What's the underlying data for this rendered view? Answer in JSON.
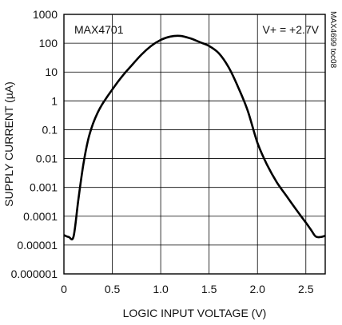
{
  "chart_data": {
    "type": "line",
    "title": "",
    "xlabel": "LOGIC INPUT VOLTAGE (V)",
    "ylabel": "SUPPLY CURRENT (µA)",
    "xlim": [
      0,
      2.7
    ],
    "ylim": [
      1e-06,
      1000
    ],
    "y_scale": "log",
    "grid": true,
    "x_ticks": [
      0,
      0.5,
      1.0,
      1.5,
      2.0,
      2.5
    ],
    "x_tick_labels": [
      "0",
      "0.5",
      "1.0",
      "1.5",
      "2.0",
      "2.5"
    ],
    "y_ticks": [
      1e-06,
      1e-05,
      0.0001,
      0.001,
      0.01,
      0.1,
      1,
      10,
      100,
      1000
    ],
    "y_tick_labels": [
      "0.000001",
      "0.00001",
      "0.0001",
      "0.001",
      "0.01",
      "0.1",
      "1",
      "10",
      "100",
      "1000"
    ],
    "annotations": {
      "part": "MAX4701",
      "condition": "V+ = +2.7V",
      "figure_id": "MAX4699 toc08"
    },
    "series": [
      {
        "color": "#000000",
        "points": [
          [
            0.0,
            2.2e-05
          ],
          [
            0.05,
            1.9e-05
          ],
          [
            0.1,
            2e-05
          ],
          [
            0.15,
            0.0004
          ],
          [
            0.2,
            0.006
          ],
          [
            0.25,
            0.045
          ],
          [
            0.3,
            0.16
          ],
          [
            0.35,
            0.4
          ],
          [
            0.4,
            0.8
          ],
          [
            0.5,
            2.5
          ],
          [
            0.6,
            7
          ],
          [
            0.7,
            17
          ],
          [
            0.8,
            40
          ],
          [
            0.9,
            80
          ],
          [
            1.0,
            130
          ],
          [
            1.1,
            170
          ],
          [
            1.2,
            180
          ],
          [
            1.3,
            150
          ],
          [
            1.4,
            110
          ],
          [
            1.5,
            80
          ],
          [
            1.6,
            45
          ],
          [
            1.7,
            15
          ],
          [
            1.8,
            3
          ],
          [
            1.9,
            0.45
          ],
          [
            2.0,
            0.035
          ],
          [
            2.1,
            0.006
          ],
          [
            2.2,
            0.0015
          ],
          [
            2.3,
            0.0005
          ],
          [
            2.4,
            0.00017
          ],
          [
            2.5,
            6e-05
          ],
          [
            2.55,
            3.5e-05
          ],
          [
            2.6,
            2e-05
          ],
          [
            2.65,
            1.9e-05
          ],
          [
            2.7,
            2.1e-05
          ]
        ]
      }
    ]
  }
}
